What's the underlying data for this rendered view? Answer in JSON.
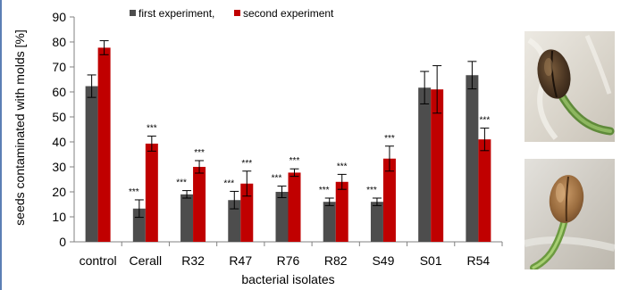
{
  "chart_data": {
    "type": "bar",
    "title": "",
    "xlabel": "bacterial isolates",
    "ylabel": "seeds contaminated with molds [%]",
    "ylim": [
      0,
      90
    ],
    "yticks": [
      0,
      10,
      20,
      30,
      40,
      50,
      60,
      70,
      80,
      90
    ],
    "grid": false,
    "legend_position": "top",
    "categories": [
      "control",
      "Cerall",
      "R32",
      "R47",
      "R76",
      "R82",
      "S49",
      "S01",
      "R54"
    ],
    "series": [
      {
        "name": "first experiment,",
        "color": "#4d4d4d",
        "values": [
          62.3,
          13.3,
          19.0,
          16.7,
          20.0,
          16.0,
          16.0,
          61.7,
          66.7
        ],
        "errors": [
          4.5,
          3.5,
          1.5,
          3.5,
          2.3,
          1.5,
          1.5,
          6.5,
          5.5
        ],
        "significance": [
          "",
          "***",
          "***",
          "***",
          "***",
          "***",
          "***",
          "",
          ""
        ]
      },
      {
        "name": "second experiment",
        "color": "#c00000",
        "values": [
          77.7,
          39.3,
          30.0,
          23.3,
          27.7,
          24.0,
          33.3,
          61.0,
          41.0
        ],
        "errors": [
          2.8,
          3.0,
          2.5,
          5.0,
          1.5,
          3.0,
          5.0,
          9.5,
          4.5
        ],
        "significance": [
          "",
          "***",
          "***",
          "***",
          "***",
          "***",
          "***",
          "",
          "***"
        ]
      }
    ]
  },
  "images": {
    "top_photo_name": "seed-with-sprout-photo",
    "bottom_photo_name": "seed-with-sprout-photo"
  }
}
